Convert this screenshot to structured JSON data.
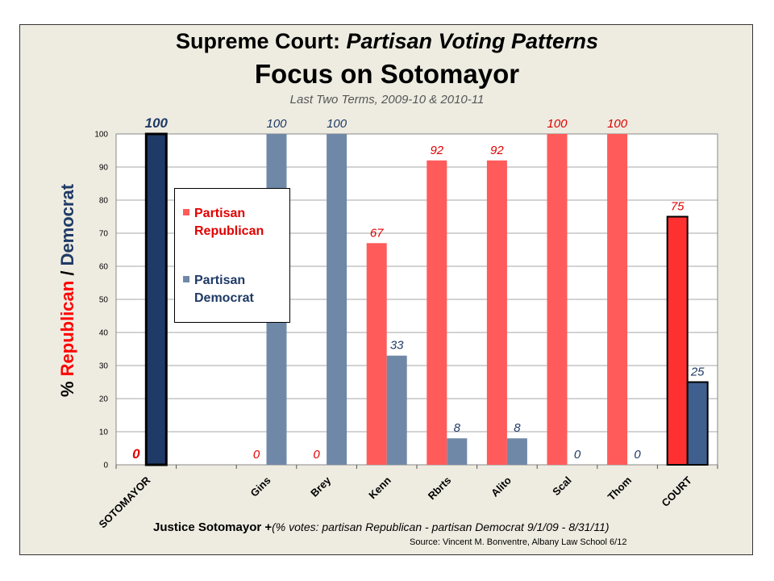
{
  "title": "Supreme Court: ",
  "title_italic": "Partisan Voting Patterns",
  "subtitle": "Focus on Sotomayor",
  "subsubtitle": "Last Two Terms, 2009-10 & 2010-11",
  "y_axis_label": {
    "part1": "% ",
    "republican": "Republican",
    "sep": " / ",
    "democrat": "Democrat"
  },
  "x_caption": {
    "bold": "Justice Sotomayor +",
    "italic": "(% votes: partisan Republican - partisan Democrat 9/1/09 - 8/31/11)"
  },
  "source": "Source:  Vincent M. Bonventre,  Albany Law School  6/12",
  "legend": [
    {
      "label": "Partisan Republican",
      "color": "#ff5b5b"
    },
    {
      "label": "Partisan Democrat",
      "color": "#7088a8"
    }
  ],
  "colors": {
    "republican": "#ff5b5b",
    "democrat": "#7088a8",
    "sotomayor_dem": "#1f3a66",
    "court_rep": "#ff3030",
    "court_dem": "#3f5f8f",
    "label_rep": "#e00000",
    "label_dem": "#1f3a66"
  },
  "chart_data": {
    "type": "bar",
    "title": "Focus on Sotomayor",
    "ylabel": "% Republican / Democrat",
    "ylim": [
      0,
      100
    ],
    "yticks": [
      0,
      10,
      20,
      30,
      40,
      50,
      60,
      70,
      80,
      90,
      100
    ],
    "grid": true,
    "legend_position": "left-inside",
    "categories": [
      "SOTOMAYOR",
      "",
      "Gins",
      "Brey",
      "Kenn",
      "Rbrts",
      "Alito",
      "Scal",
      "Thom",
      "COURT"
    ],
    "series": [
      {
        "name": "Partisan Republican",
        "values": [
          0,
          null,
          0,
          0,
          67,
          92,
          92,
          100,
          100,
          75
        ]
      },
      {
        "name": "Partisan Democrat",
        "values": [
          100,
          null,
          100,
          100,
          33,
          8,
          8,
          0,
          0,
          25
        ]
      }
    ]
  }
}
